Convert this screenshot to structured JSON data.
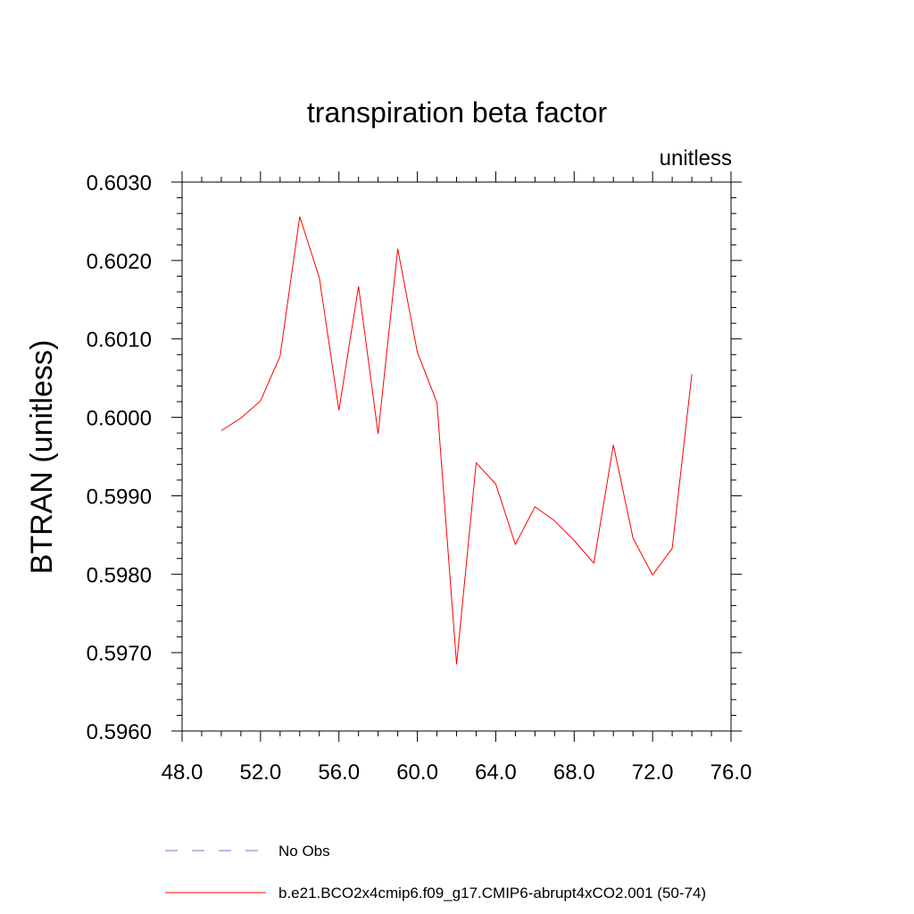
{
  "chart_data": {
    "type": "line",
    "title": "transpiration beta factor",
    "units_label": "unitless",
    "ylabel": "BTRAN  (unitless)",
    "xlabel": "",
    "xlim": [
      48,
      76
    ],
    "ylim": [
      0.596,
      0.603
    ],
    "x_ticks": [
      "48.0",
      "52.0",
      "56.0",
      "60.0",
      "64.0",
      "68.0",
      "72.0",
      "76.0"
    ],
    "y_ticks": [
      "0.5960",
      "0.5970",
      "0.5980",
      "0.5990",
      "0.6000",
      "0.6010",
      "0.6020",
      "0.6030"
    ],
    "grid": false,
    "legend_position": "bottom",
    "series": [
      {
        "name": "b.e21.BCO2x4cmip6.f09_g17.CMIP6-abrupt4xCO2.001 (50-74)",
        "color": "#ff0000",
        "style": "solid",
        "x": [
          50,
          51,
          52,
          53,
          54,
          55,
          56,
          57,
          58,
          59,
          60,
          61,
          62,
          63,
          64,
          65,
          66,
          67,
          68,
          69,
          70,
          71,
          72,
          73,
          74
        ],
        "values": [
          0.59983,
          0.59999,
          0.60021,
          0.60078,
          0.60256,
          0.60178,
          0.60009,
          0.60167,
          0.59979,
          0.60215,
          0.60083,
          0.60019,
          0.59685,
          0.59942,
          0.59915,
          0.59838,
          0.59886,
          0.59868,
          0.59843,
          0.59814,
          0.59965,
          0.59846,
          0.59799,
          0.59833,
          0.60055
        ]
      },
      {
        "name": "No Obs",
        "color": "#7b6fc6",
        "style": "dashed",
        "x": [],
        "values": []
      }
    ]
  }
}
